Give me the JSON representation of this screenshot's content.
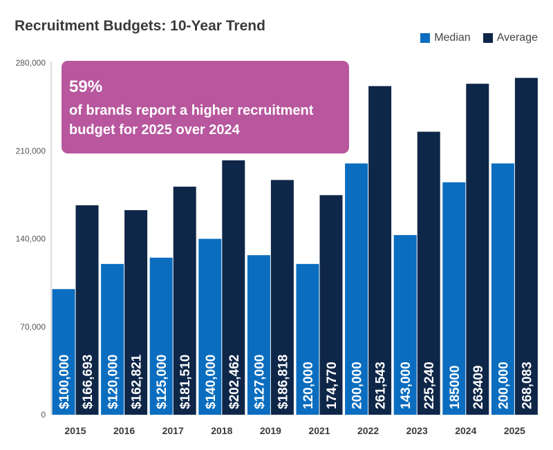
{
  "chart_data": {
    "type": "bar",
    "title": "Recruitment Budgets: 10-Year Trend",
    "categories": [
      "2015",
      "2016",
      "2017",
      "2018",
      "2019",
      "2021",
      "2022",
      "2023",
      "2024",
      "2025"
    ],
    "series": [
      {
        "name": "Median",
        "color": "#0a6dbf",
        "values": [
          100000,
          120000,
          125000,
          140000,
          127000,
          120000,
          200000,
          143000,
          185000,
          200000
        ],
        "labels": [
          "$100,000",
          "$120,000",
          "$125,000",
          "$140,000",
          "$127,000",
          "120,000",
          "200,000",
          "143,000",
          "185000",
          "200,000"
        ]
      },
      {
        "name": "Average",
        "color": "#0e2648",
        "values": [
          166693,
          162821,
          181510,
          202462,
          186818,
          174770,
          261543,
          225240,
          263409,
          268083
        ],
        "labels": [
          "$166,693",
          "$162,821",
          "$181,510",
          "$202,462",
          "$186,818",
          "174,770",
          "261,543",
          "225,240",
          "263409",
          "268,083"
        ]
      }
    ],
    "yticks": [
      "0",
      "70,000",
      "140,000",
      "210,000",
      "280,000"
    ],
    "ylim": [
      0,
      280000
    ],
    "grid": false,
    "legend_position": "top-right"
  },
  "callout": {
    "stat": "59%",
    "text": "of brands report a higher recruitment budget for 2025 over 2024",
    "color": "#b8579e"
  }
}
